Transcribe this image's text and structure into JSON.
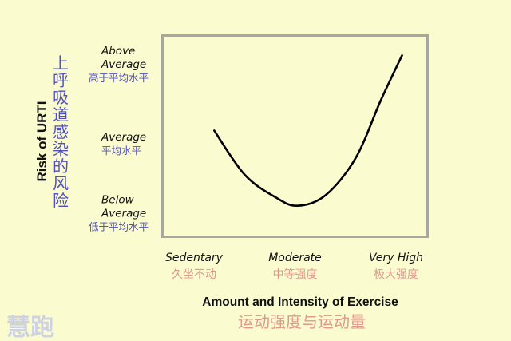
{
  "chart_data": {
    "type": "line",
    "xlabel": "Amount and Intensity of Exercise",
    "xlabel_cn": "运动强度与运动量",
    "ylabel": "Risk of URTI",
    "ylabel_cn": "上呼吸道感染的风险",
    "x_ticks": [
      {
        "line1": "Sedentary",
        "cn": "久坐不动",
        "value": 0
      },
      {
        "line1": "Moderate",
        "cn": "中等强度",
        "value": 1
      },
      {
        "line1": "Very High",
        "cn": "极大强度",
        "value": 2
      }
    ],
    "y_ticks": [
      {
        "line1": "Above",
        "line2": "Average",
        "cn": "高于平均水平",
        "value": 2
      },
      {
        "line1": "Average",
        "line2": "",
        "cn": "平均水平",
        "value": 1
      },
      {
        "line1": "Below",
        "line2": "Average",
        "cn": "低于平均水平",
        "value": 0
      }
    ],
    "series": [
      {
        "values": [
          {
            "x": 0.2,
            "y": 1.19
          },
          {
            "x": 0.5,
            "y": 0.6
          },
          {
            "x": 0.8,
            "y": 0.3
          },
          {
            "x": 1.02,
            "y": 0.18
          },
          {
            "x": 1.3,
            "y": 0.32
          },
          {
            "x": 1.6,
            "y": 0.82
          },
          {
            "x": 1.85,
            "y": 1.6
          },
          {
            "x": 2.06,
            "y": 2.2
          }
        ],
        "color": "#000000"
      }
    ],
    "xlim": [
      -0.3,
      2.3
    ],
    "ylim": [
      -0.22,
      2.45
    ],
    "grid": false,
    "legend": "none"
  },
  "watermark": "慧跑"
}
